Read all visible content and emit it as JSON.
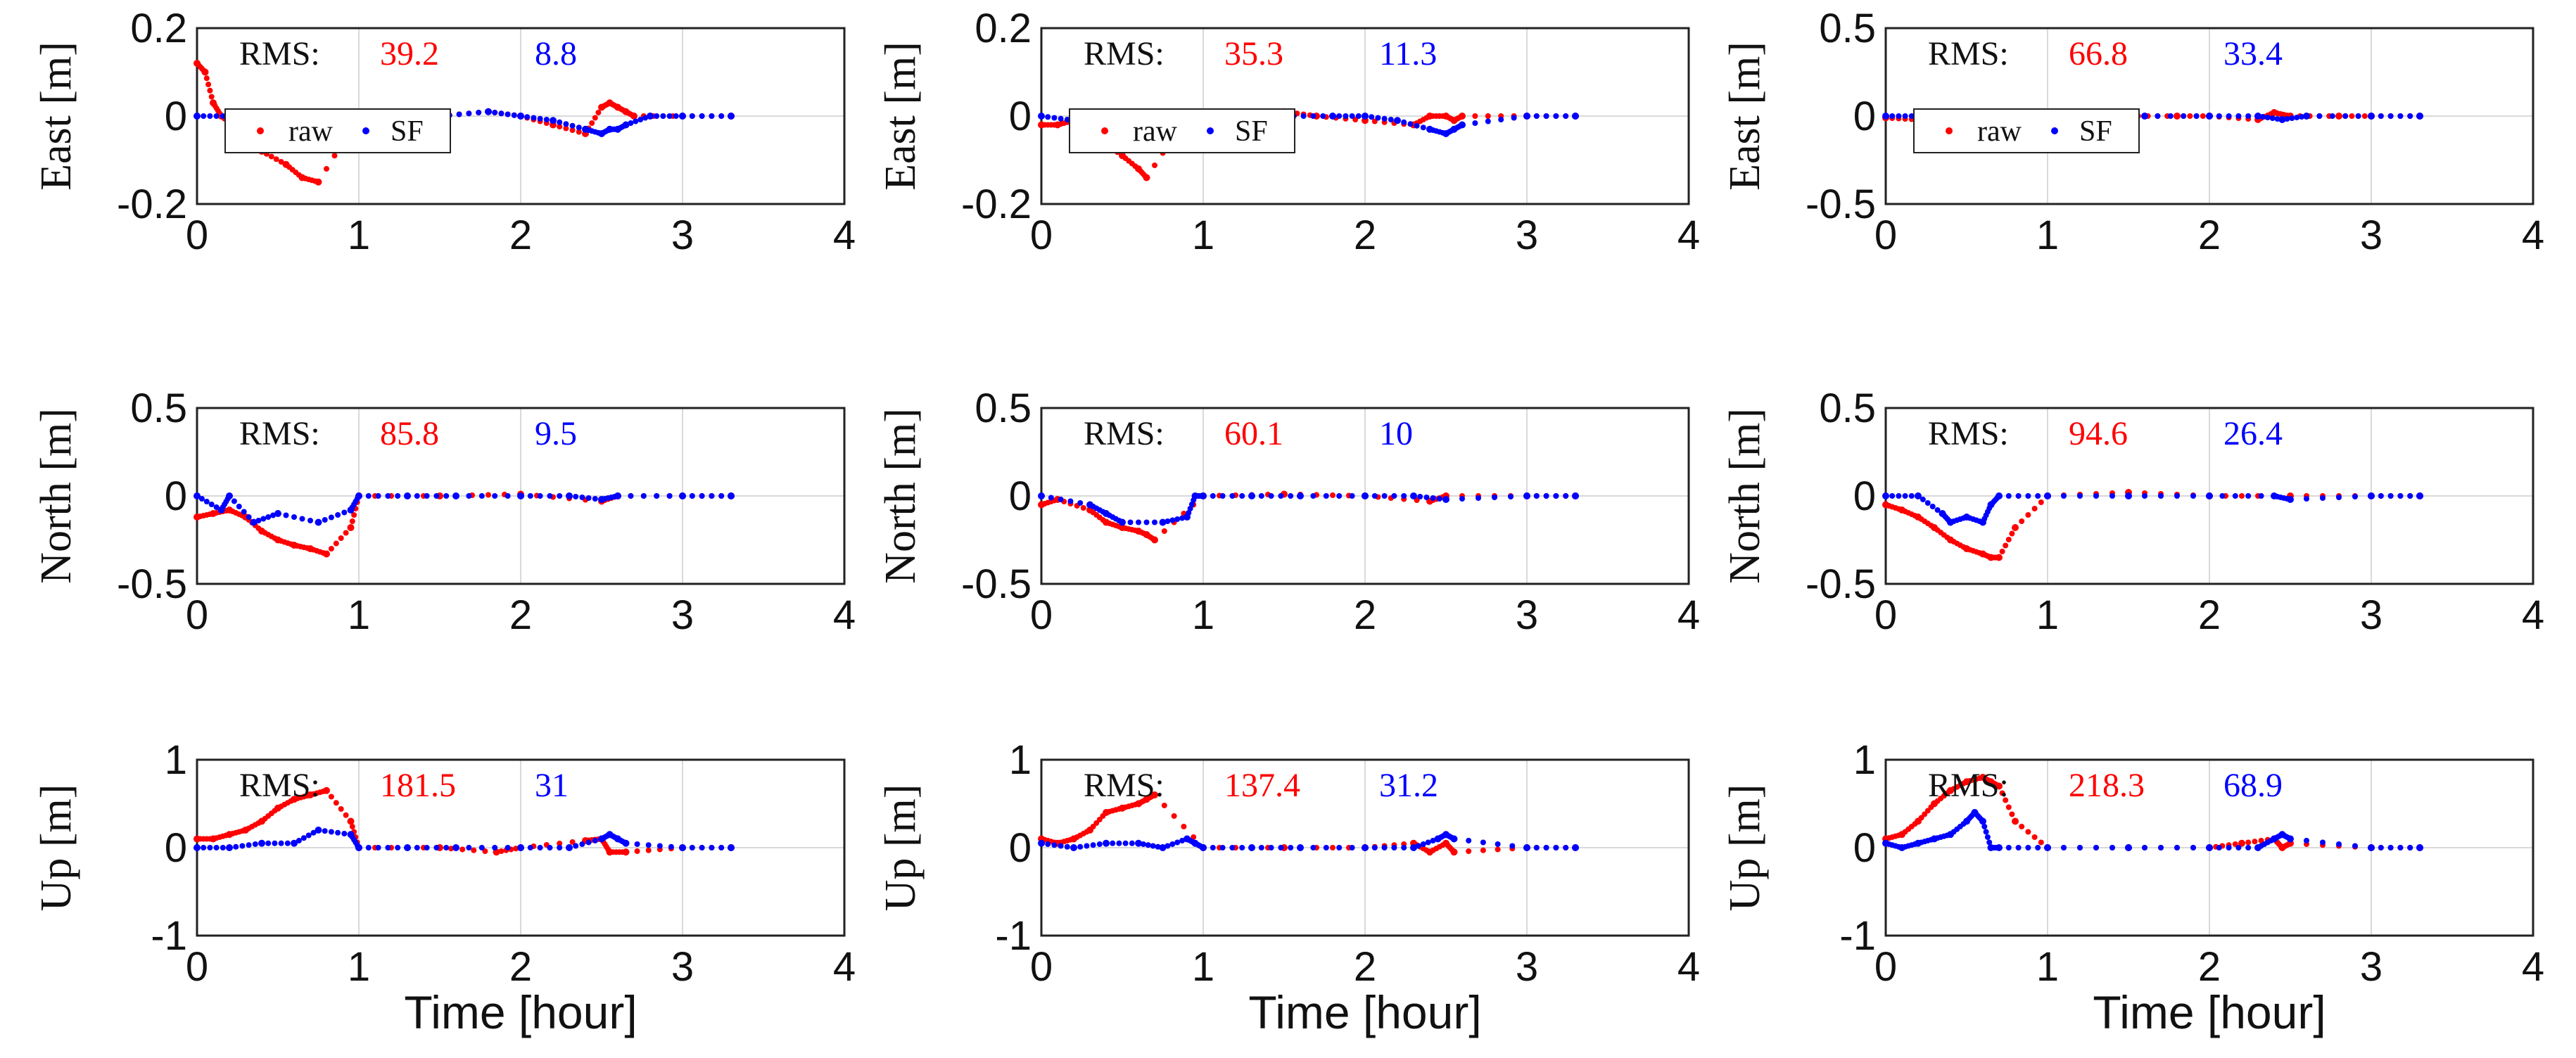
{
  "figure": {
    "xlabel_text": "Time [hour]"
  },
  "colors": {
    "raw": "#ff0000",
    "sf": "#0000ff",
    "axis": "#222222",
    "grid": "#d9d9d9"
  },
  "chart_data": [
    {
      "type": "scatter",
      "title": "",
      "xlabel": "",
      "ylabel": "East [m]",
      "xlim": [
        0,
        4
      ],
      "ylim": [
        -0.2,
        0.2
      ],
      "yticks": [
        "0.2",
        "0",
        "-0.2"
      ],
      "xticks": [
        "0",
        "1",
        "2",
        "3",
        "4"
      ],
      "legend": true,
      "legend_position": "lower-left",
      "legend_labels": [
        "raw",
        "SF"
      ],
      "rms_label": "RMS:",
      "rms_raw": "39.2",
      "rms_sf": "8.8",
      "series": [
        {
          "name": "raw",
          "x": [
            0,
            0.05,
            0.1,
            0.15,
            0.25,
            0.4,
            0.55,
            0.65,
            0.75,
            1.0,
            1.5,
            1.8,
            2.0,
            2.2,
            2.4,
            2.5,
            2.55,
            2.6,
            2.65,
            2.7,
            3.0,
            3.3
          ],
          "y": [
            0.12,
            0.1,
            0.03,
            0.0,
            -0.03,
            -0.08,
            -0.11,
            -0.14,
            -0.15,
            0.0,
            0.0,
            0.01,
            0.0,
            -0.02,
            -0.04,
            0.02,
            0.03,
            0.02,
            0.01,
            0.0,
            0.0,
            0.0
          ]
        },
        {
          "name": "SF",
          "x": [
            0,
            0.2,
            0.4,
            0.6,
            0.8,
            1.0,
            1.2,
            1.5,
            1.8,
            2.0,
            2.2,
            2.4,
            2.5,
            2.55,
            2.6,
            2.65,
            2.8,
            3.0,
            3.3
          ],
          "y": [
            0,
            0.0,
            -0.01,
            0,
            0,
            0,
            0,
            0,
            0.01,
            0,
            -0.01,
            -0.03,
            -0.04,
            -0.03,
            -0.03,
            -0.02,
            0,
            0,
            0
          ]
        }
      ]
    },
    {
      "type": "scatter",
      "title": "",
      "xlabel": "",
      "ylabel": "East [m]",
      "xlim": [
        0,
        4
      ],
      "ylim": [
        -0.2,
        0.2
      ],
      "yticks": [
        "0.2",
        "0",
        "-0.2"
      ],
      "xticks": [
        "0",
        "1",
        "2",
        "3",
        "4"
      ],
      "legend": true,
      "legend_position": "lower-left",
      "legend_labels": [
        "raw",
        "SF"
      ],
      "rms_label": "RMS:",
      "rms_raw": "35.3",
      "rms_sf": "11.3",
      "series": [
        {
          "name": "raw",
          "x": [
            0,
            0.1,
            0.2,
            0.35,
            0.5,
            0.6,
            0.65,
            0.9,
            1.2,
            1.5,
            1.7,
            2.0,
            2.3,
            2.4,
            2.5,
            2.55,
            2.6,
            3.0,
            3.3
          ],
          "y": [
            -0.02,
            -0.02,
            -0.01,
            -0.05,
            -0.09,
            -0.12,
            -0.14,
            0.0,
            0.0,
            0.01,
            0.0,
            -0.01,
            -0.02,
            0.0,
            0.0,
            -0.01,
            0.0,
            0.0,
            0.0
          ]
        },
        {
          "name": "SF",
          "x": [
            0,
            0.2,
            0.4,
            0.6,
            0.8,
            0.9,
            0.95,
            1.0,
            1.2,
            1.5,
            1.8,
            2.0,
            2.2,
            2.4,
            2.5,
            2.55,
            2.6,
            3.0,
            3.3
          ],
          "y": [
            0,
            -0.01,
            -0.02,
            -0.01,
            0,
            -0.06,
            -0.05,
            0,
            0,
            0,
            0,
            0,
            -0.01,
            -0.03,
            -0.04,
            -0.03,
            -0.02,
            0,
            0
          ]
        }
      ]
    },
    {
      "type": "scatter",
      "title": "",
      "xlabel": "",
      "ylabel": "East [m]",
      "xlim": [
        0,
        4
      ],
      "ylim": [
        -0.5,
        0.5
      ],
      "yticks": [
        "0.5",
        "0",
        "-0.5"
      ],
      "xticks": [
        "0",
        "1",
        "2",
        "3",
        "4"
      ],
      "legend": true,
      "legend_position": "lower-left",
      "legend_labels": [
        "raw",
        "SF"
      ],
      "rms_label": "RMS:",
      "rms_raw": "66.8",
      "rms_sf": "33.4",
      "series": [
        {
          "name": "raw",
          "x": [
            0,
            0.2,
            0.4,
            0.6,
            0.8,
            1.0,
            1.2,
            1.5,
            1.8,
            2.0,
            2.3,
            2.4,
            2.5,
            2.8,
            3.0,
            3.3
          ],
          "y": [
            -0.01,
            -0.02,
            -0.03,
            -0.03,
            -0.03,
            -0.02,
            0,
            0,
            0,
            0,
            -0.02,
            0.02,
            0,
            0,
            0,
            0
          ]
        },
        {
          "name": "SF",
          "x": [
            0,
            0.2,
            0.4,
            0.5,
            0.6,
            0.8,
            1.0,
            1.3,
            1.6,
            2.0,
            2.3,
            2.45,
            2.6,
            3.0,
            3.3
          ],
          "y": [
            0,
            0,
            0,
            -0.02,
            0,
            0,
            0,
            0,
            0,
            0,
            0,
            -0.02,
            0,
            0,
            0
          ]
        }
      ]
    },
    {
      "type": "scatter",
      "title": "",
      "xlabel": "",
      "ylabel": "North [m]",
      "xlim": [
        0,
        4
      ],
      "ylim": [
        -0.5,
        0.5
      ],
      "yticks": [
        "0.5",
        "0",
        "-0.5"
      ],
      "xticks": [
        "0",
        "1",
        "2",
        "3",
        "4"
      ],
      "legend": false,
      "rms_label": "RMS:",
      "rms_raw": "85.8",
      "rms_sf": "9.5",
      "series": [
        {
          "name": "raw",
          "x": [
            0,
            0.1,
            0.2,
            0.3,
            0.4,
            0.5,
            0.6,
            0.7,
            0.8,
            0.95,
            1.0,
            1.5,
            2.0,
            2.5,
            2.6,
            3.0,
            3.3
          ],
          "y": [
            -0.12,
            -0.1,
            -0.08,
            -0.12,
            -0.2,
            -0.25,
            -0.28,
            -0.3,
            -0.33,
            -0.18,
            0.0,
            0.0,
            0.01,
            -0.03,
            0.0,
            0.0,
            0.0
          ]
        },
        {
          "name": "SF",
          "x": [
            0,
            0.15,
            0.2,
            0.35,
            0.5,
            0.75,
            0.95,
            1.0,
            1.3,
            1.6,
            2.0,
            2.3,
            2.5,
            2.6,
            3.0,
            3.3
          ],
          "y": [
            0,
            -0.08,
            0,
            -0.15,
            -0.1,
            -0.15,
            -0.08,
            0,
            0,
            0,
            0,
            0,
            -0.02,
            0,
            0,
            0
          ]
        }
      ]
    },
    {
      "type": "scatter",
      "title": "",
      "xlabel": "",
      "ylabel": "North [m]",
      "xlim": [
        0,
        4
      ],
      "ylim": [
        -0.5,
        0.5
      ],
      "yticks": [
        "0.5",
        "0",
        "-0.5"
      ],
      "xticks": [
        "0",
        "1",
        "2",
        "3",
        "4"
      ],
      "legend": false,
      "rms_label": "RMS:",
      "rms_raw": "60.1",
      "rms_sf": "10",
      "series": [
        {
          "name": "raw",
          "x": [
            0,
            0.1,
            0.3,
            0.4,
            0.5,
            0.6,
            0.65,
            0.7,
            1.0,
            1.5,
            2.0,
            2.4,
            2.5,
            3.0,
            3.3
          ],
          "y": [
            -0.05,
            -0.02,
            -0.08,
            -0.15,
            -0.18,
            -0.2,
            -0.22,
            -0.25,
            0.0,
            0.01,
            0.0,
            -0.03,
            0.0,
            0.0,
            0.0
          ]
        },
        {
          "name": "SF",
          "x": [
            0,
            0.3,
            0.4,
            0.5,
            0.75,
            0.9,
            0.95,
            1.0,
            1.3,
            1.6,
            2.0,
            2.3,
            2.5,
            3.0,
            3.3
          ],
          "y": [
            0,
            -0.05,
            -0.1,
            -0.15,
            -0.15,
            -0.12,
            0.0,
            0,
            0,
            0,
            0,
            0,
            -0.02,
            0,
            0
          ]
        }
      ]
    },
    {
      "type": "scatter",
      "title": "",
      "xlabel": "",
      "ylabel": "North [m]",
      "xlim": [
        0,
        4
      ],
      "ylim": [
        -0.5,
        0.5
      ],
      "yticks": [
        "0.5",
        "0",
        "-0.5"
      ],
      "xticks": [
        "0",
        "1",
        "2",
        "3",
        "4"
      ],
      "legend": false,
      "rms_label": "RMS:",
      "rms_raw": "94.6",
      "rms_sf": "26.4",
      "series": [
        {
          "name": "raw",
          "x": [
            0,
            0.1,
            0.2,
            0.3,
            0.4,
            0.5,
            0.6,
            0.65,
            0.7,
            0.8,
            1.0,
            1.5,
            2.0,
            2.5,
            3.0,
            3.3
          ],
          "y": [
            -0.05,
            -0.08,
            -0.12,
            -0.18,
            -0.25,
            -0.3,
            -0.33,
            -0.35,
            -0.35,
            -0.18,
            0.0,
            0.02,
            0.0,
            0.0,
            0.0,
            0.0
          ]
        },
        {
          "name": "SF",
          "x": [
            0,
            0.2,
            0.35,
            0.4,
            0.5,
            0.6,
            0.65,
            0.7,
            1.0,
            1.5,
            2.0,
            2.4,
            2.5,
            3.0,
            3.3
          ],
          "y": [
            0,
            0,
            -0.1,
            -0.15,
            -0.12,
            -0.15,
            -0.05,
            0,
            0,
            0,
            0,
            0.0,
            -0.02,
            0,
            0
          ]
        }
      ]
    },
    {
      "type": "scatter",
      "title": "",
      "xlabel": "Time [hour]",
      "ylabel": "Up [m]",
      "xlim": [
        0,
        4
      ],
      "ylim": [
        -1,
        1
      ],
      "yticks": [
        "1",
        "0",
        "-1"
      ],
      "xticks": [
        "0",
        "1",
        "2",
        "3",
        "4"
      ],
      "legend": false,
      "rms_label": "RMS:",
      "rms_raw": "181.5",
      "rms_sf": "31",
      "series": [
        {
          "name": "raw",
          "x": [
            0,
            0.1,
            0.2,
            0.3,
            0.4,
            0.5,
            0.6,
            0.7,
            0.8,
            0.95,
            1.0,
            1.5,
            1.85,
            2.0,
            2.4,
            2.5,
            2.55,
            2.65,
            3.0,
            3.3
          ],
          "y": [
            0.1,
            0.1,
            0.15,
            0.2,
            0.3,
            0.45,
            0.55,
            0.6,
            0.65,
            0.3,
            0.0,
            0.0,
            -0.05,
            0.0,
            0.08,
            0.1,
            -0.05,
            -0.05,
            0.0,
            0.0
          ]
        },
        {
          "name": "SF",
          "x": [
            0,
            0.2,
            0.4,
            0.6,
            0.75,
            0.95,
            1.0,
            1.3,
            1.6,
            2.0,
            2.3,
            2.5,
            2.55,
            2.6,
            2.65,
            3.0,
            3.3
          ],
          "y": [
            0,
            0.0,
            0.05,
            0.05,
            0.2,
            0.15,
            0.0,
            0,
            0,
            0,
            0,
            0.1,
            0.15,
            0.1,
            0.05,
            0,
            0
          ]
        }
      ]
    },
    {
      "type": "scatter",
      "title": "",
      "xlabel": "Time [hour]",
      "ylabel": "Up [m]",
      "xlim": [
        0,
        4
      ],
      "ylim": [
        -1,
        1
      ],
      "yticks": [
        "1",
        "0",
        "-1"
      ],
      "xticks": [
        "0",
        "1",
        "2",
        "3",
        "4"
      ],
      "legend": false,
      "rms_label": "RMS:",
      "rms_raw": "137.4",
      "rms_sf": "31.2",
      "series": [
        {
          "name": "raw",
          "x": [
            0,
            0.1,
            0.2,
            0.3,
            0.4,
            0.5,
            0.6,
            0.65,
            0.7,
            1.0,
            1.5,
            2.0,
            2.3,
            2.4,
            2.5,
            2.55,
            3.0,
            3.3
          ],
          "y": [
            0.1,
            0.05,
            0.1,
            0.2,
            0.4,
            0.45,
            0.5,
            0.55,
            0.6,
            0.0,
            0.0,
            0.0,
            0.05,
            -0.05,
            0.05,
            -0.05,
            0.0,
            0.0
          ]
        },
        {
          "name": "SF",
          "x": [
            0,
            0.2,
            0.4,
            0.6,
            0.75,
            0.9,
            0.95,
            1.0,
            1.3,
            1.6,
            2.0,
            2.3,
            2.45,
            2.5,
            2.55,
            3.0,
            3.3
          ],
          "y": [
            0.05,
            0.0,
            0.05,
            0.05,
            0.0,
            0.1,
            0.05,
            0,
            0,
            0,
            0,
            0,
            0.1,
            0.15,
            0.1,
            0,
            0
          ]
        }
      ]
    },
    {
      "type": "scatter",
      "title": "",
      "xlabel": "Time [hour]",
      "ylabel": "Up [m]",
      "xlim": [
        0,
        4
      ],
      "ylim": [
        -1,
        1
      ],
      "yticks": [
        "1",
        "0",
        "-1"
      ],
      "xticks": [
        "0",
        "1",
        "2",
        "3",
        "4"
      ],
      "legend": false,
      "rms_label": "RMS:",
      "rms_raw": "218.3",
      "rms_sf": "68.9",
      "series": [
        {
          "name": "raw",
          "x": [
            0,
            0.1,
            0.2,
            0.3,
            0.4,
            0.5,
            0.6,
            0.65,
            0.7,
            0.8,
            1.0,
            1.5,
            2.0,
            2.2,
            2.4,
            2.45,
            2.5,
            3.0,
            3.3
          ],
          "y": [
            0.1,
            0.15,
            0.3,
            0.5,
            0.65,
            0.75,
            0.8,
            0.75,
            0.7,
            0.3,
            0.0,
            0.0,
            0.0,
            0.05,
            0.1,
            0.0,
            0.05,
            0.0,
            0.0
          ]
        },
        {
          "name": "SF",
          "x": [
            0,
            0.1,
            0.2,
            0.3,
            0.4,
            0.5,
            0.55,
            0.6,
            0.65,
            0.7,
            1.0,
            1.5,
            2.0,
            2.3,
            2.4,
            2.45,
            2.5,
            3.0,
            3.3
          ],
          "y": [
            0.05,
            0.0,
            0.05,
            0.1,
            0.15,
            0.3,
            0.4,
            0.3,
            0.0,
            0.0,
            0,
            0,
            0,
            0.0,
            0.1,
            0.15,
            0.1,
            0,
            0
          ]
        }
      ]
    }
  ]
}
